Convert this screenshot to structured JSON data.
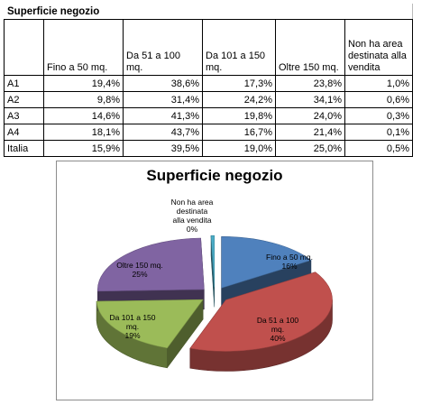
{
  "table": {
    "title": "Superficie negozio",
    "headers": [
      "",
      "Fino a 50 mq.",
      "Da 51 a 100 mq.",
      "Da 101 a 150 mq.",
      "Oltre 150 mq.",
      "Non ha area destinata alla vendita"
    ],
    "rows": [
      {
        "label": "A1",
        "values": [
          "19,4%",
          "38,6%",
          "17,3%",
          "23,8%",
          "1,0%"
        ]
      },
      {
        "label": "A2",
        "values": [
          "9,8%",
          "31,4%",
          "24,2%",
          "34,1%",
          "0,6%"
        ]
      },
      {
        "label": "A3",
        "values": [
          "14,6%",
          "41,3%",
          "19,8%",
          "24,0%",
          "0,3%"
        ]
      },
      {
        "label": "A4",
        "values": [
          "18,1%",
          "43,7%",
          "16,7%",
          "21,4%",
          "0,1%"
        ]
      },
      {
        "label": "Italia",
        "values": [
          "15,9%",
          "39,5%",
          "19,0%",
          "25,0%",
          "0,5%"
        ]
      }
    ]
  },
  "chart_data": {
    "type": "pie",
    "title": "Superficie negozio",
    "categories": [
      "Fino a 50 mq.",
      "Da 51 a 100 mq.",
      "Da 101 a 150 mq.",
      "Oltre 150 mq.",
      "Non ha area destinata alla vendita"
    ],
    "values": [
      15.9,
      39.5,
      19.0,
      25.0,
      0.5
    ],
    "data_labels": [
      "16%",
      "40%",
      "19%",
      "25%",
      "0%"
    ],
    "colors": [
      "#4f81bd",
      "#c0504d",
      "#9bbb59",
      "#8064a2",
      "#4bacc6"
    ],
    "exploded": true,
    "style": "3d"
  }
}
